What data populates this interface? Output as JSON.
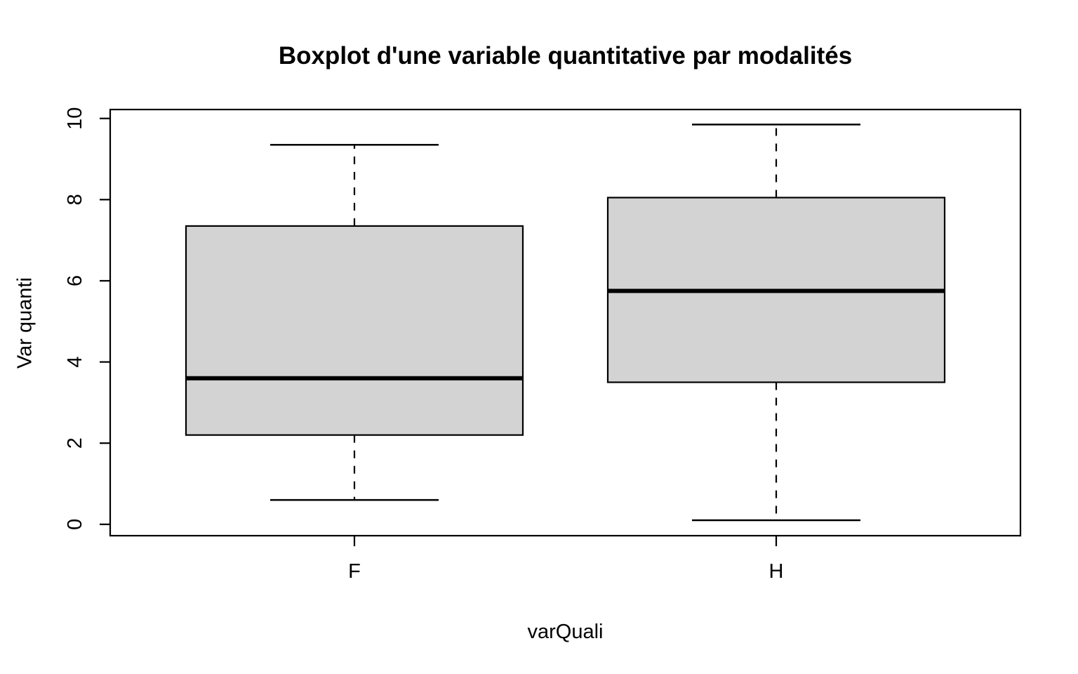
{
  "chart_data": {
    "type": "boxplot",
    "title": "Boxplot d'une variable quantitative par modalités",
    "xlabel": "varQuali",
    "ylabel": "Var quanti",
    "categories": [
      "F",
      "H"
    ],
    "series": [
      {
        "name": "F",
        "whisker_low": 0.6,
        "q1": 2.2,
        "median": 3.6,
        "q3": 7.35,
        "whisker_high": 9.35
      },
      {
        "name": "H",
        "whisker_low": 0.1,
        "q1": 3.5,
        "median": 5.75,
        "q3": 8.05,
        "whisker_high": 9.85
      }
    ],
    "yticks": [
      "0",
      "2",
      "4",
      "6",
      "8",
      "10"
    ],
    "ytick_values": [
      0,
      2,
      4,
      6,
      8,
      10
    ],
    "ylim": [
      -0.28,
      10.22
    ],
    "grid": false,
    "legend": null,
    "whisker_style": "dashed",
    "box_fill": "#D3D3D3",
    "line_color": "#000000",
    "background": "#FFFFFF"
  }
}
